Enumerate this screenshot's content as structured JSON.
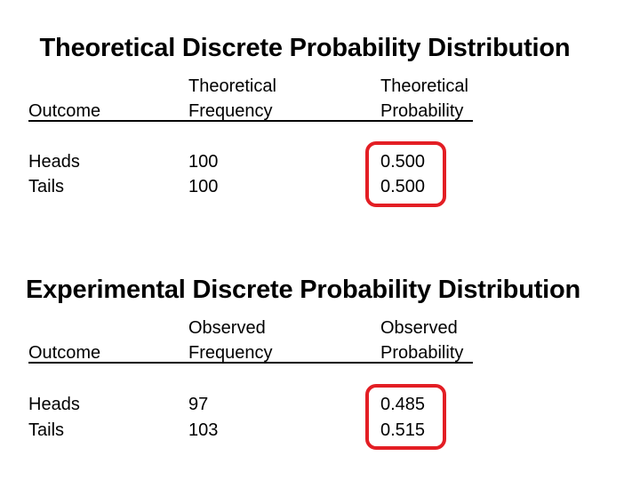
{
  "theoretical": {
    "title": "Theoretical Discrete Probability Distribution",
    "headers": {
      "outcome": "Outcome",
      "frequency_line1": "Theoretical",
      "frequency_line2": "Frequency",
      "probability_line1": "Theoretical",
      "probability_line2": "Probability"
    },
    "rows": [
      {
        "outcome": "Heads",
        "frequency": "100",
        "probability": "0.500"
      },
      {
        "outcome": "Tails",
        "frequency": "100",
        "probability": "0.500"
      }
    ]
  },
  "experimental": {
    "title": "Experimental Discrete Probability Distribution",
    "headers": {
      "outcome": "Outcome",
      "frequency_line1": "Observed",
      "frequency_line2": "Frequency",
      "probability_line1": "Observed",
      "probability_line2": "Probability"
    },
    "rows": [
      {
        "outcome": "Heads",
        "frequency": "97",
        "probability": "0.485"
      },
      {
        "outcome": "Tails",
        "frequency": "103",
        "probability": "0.515"
      }
    ]
  },
  "colors": {
    "highlight": "#e31e24"
  }
}
